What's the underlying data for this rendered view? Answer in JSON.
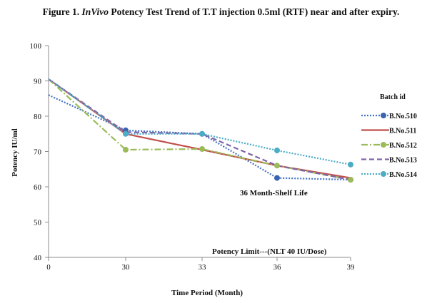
{
  "figure": {
    "label": "Figure 1.",
    "title_italic": "InVivo",
    "title_rest": "Potency Test Trend of T.T injection 0.5ml (RTF) near and after expiry."
  },
  "chart_data": {
    "type": "line",
    "title": "Figure 1. InVivo Potency Test Trend of T.T injection 0.5ml (RTF) near and after expiry.",
    "xlabel": "Time Period (Month)",
    "ylabel": "Potency IU/ml",
    "x_categories": [
      "0",
      "30",
      "33",
      "36",
      "39"
    ],
    "ylim": [
      40,
      100
    ],
    "y_ticks": [
      "40",
      "50",
      "60",
      "70",
      "80",
      "90",
      "100"
    ],
    "grid": false,
    "legend_title": "Batch id",
    "legend_position": "right",
    "series": [
      {
        "name": "B.No.510",
        "values": [
          86.0,
          76.0,
          75.0,
          62.5,
          62.0
        ],
        "color": "#4472c4",
        "dash": "2,2",
        "marker": true,
        "marker_color": "#3a64b0"
      },
      {
        "name": "B.No.511",
        "values": [
          90.5,
          75.0,
          70.5,
          66.0,
          62.5
        ],
        "color": "#c0504d",
        "dash": "",
        "marker": false,
        "marker_color": "#c0504d"
      },
      {
        "name": "B.No.512",
        "values": [
          90.5,
          70.5,
          70.7,
          66.0,
          62.0
        ],
        "color": "#9bbb59",
        "dash": "9,3,2,3",
        "marker": true,
        "marker_color": "#9bbb59"
      },
      {
        "name": "B.No.513",
        "values": [
          90.5,
          75.5,
          75.0,
          66.0,
          62.0
        ],
        "color": "#7f64a8",
        "dash": "7,4",
        "marker": false,
        "marker_color": "#7f64a8"
      },
      {
        "name": "B.No.514",
        "values": [
          90.5,
          75.0,
          75.0,
          70.3,
          66.3
        ],
        "color": "#4bacc6",
        "dash": "2,2",
        "marker": true,
        "marker_color": "#4bacc6"
      }
    ],
    "annotations": [
      {
        "text": "36 Month-Shelf Life"
      },
      {
        "text": "Potency Limit---(NLT 40 IU/Dose)"
      }
    ]
  }
}
